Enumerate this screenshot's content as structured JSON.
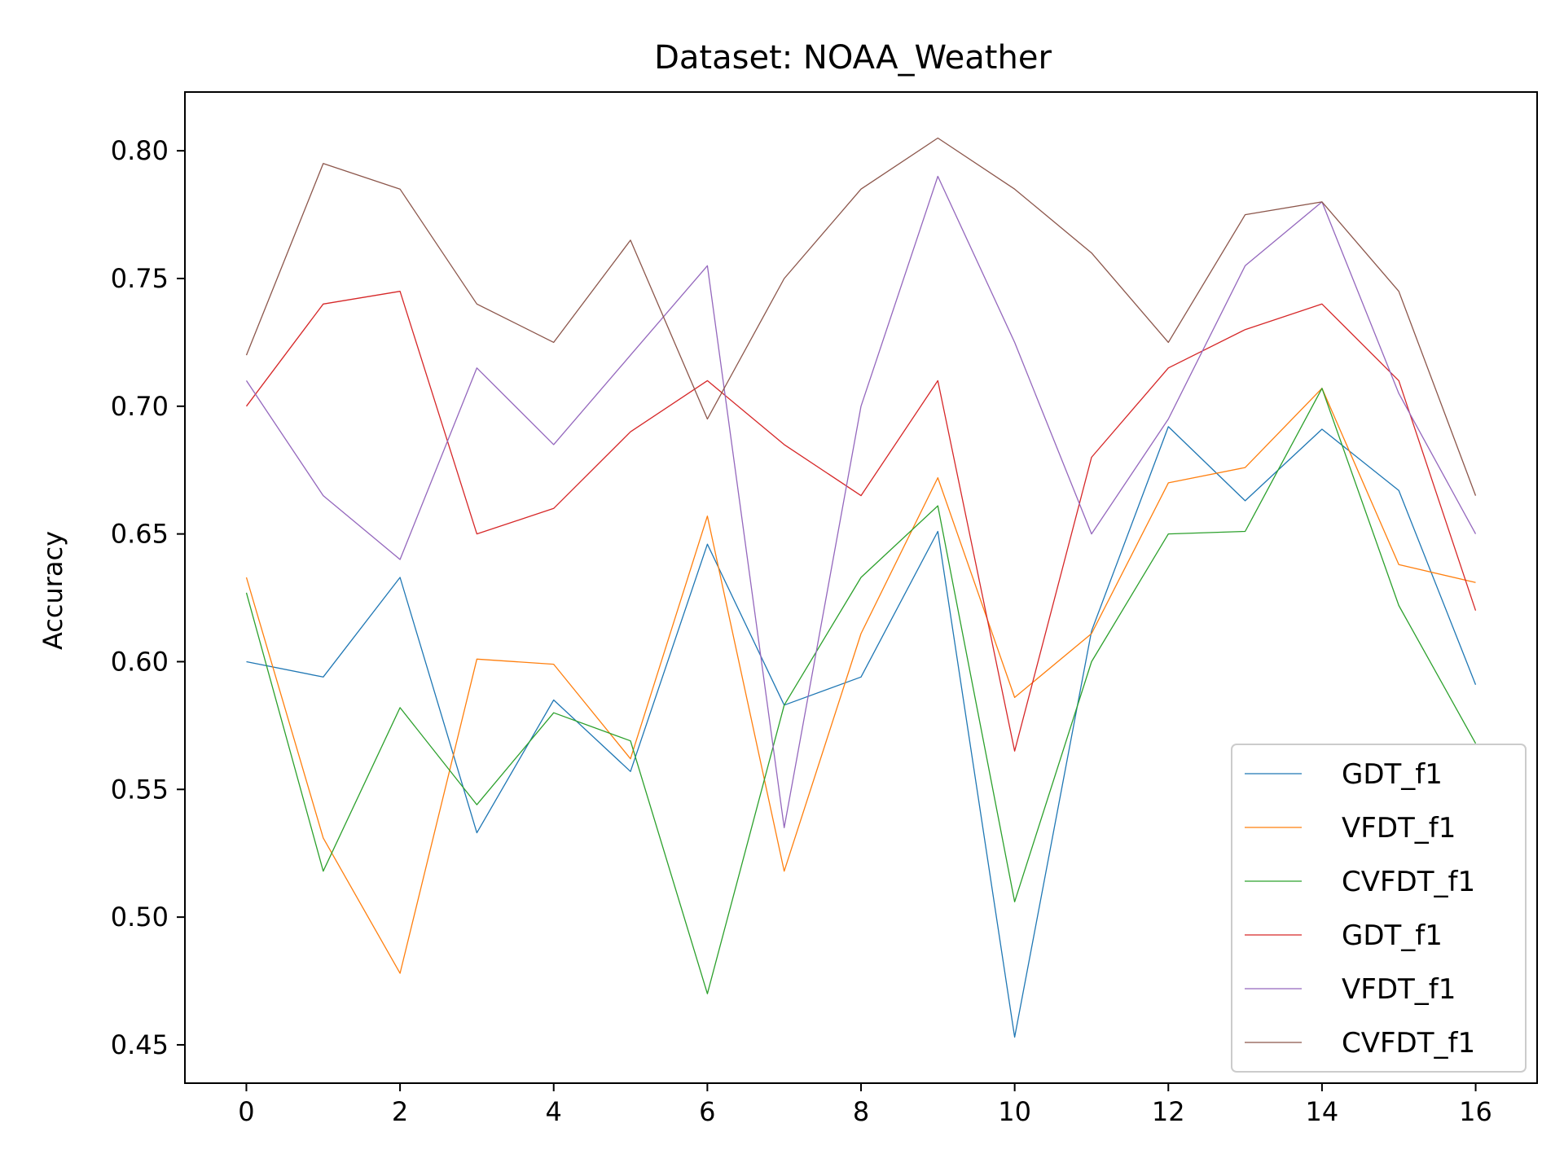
{
  "chart_data": {
    "type": "line",
    "title": "Dataset: NOAA_Weather",
    "xlabel": "",
    "ylabel": "Accuracy",
    "xlim": [
      -0.8,
      16.8
    ],
    "ylim": [
      0.435,
      0.823
    ],
    "xticks": [
      0,
      2,
      4,
      6,
      8,
      10,
      12,
      14,
      16
    ],
    "yticks": [
      "0.45",
      "0.50",
      "0.55",
      "0.60",
      "0.65",
      "0.70",
      "0.75",
      "0.80"
    ],
    "grid": false,
    "legend_position": "lower-right",
    "x": [
      0,
      1,
      2,
      3,
      4,
      5,
      6,
      7,
      8,
      9,
      10,
      11,
      12,
      13,
      14,
      15,
      16
    ],
    "series": [
      {
        "name": "GDT_f1",
        "color": "#1f77b4",
        "values": [
          0.6,
          0.594,
          0.633,
          0.533,
          0.585,
          0.557,
          0.646,
          0.583,
          0.594,
          0.651,
          0.453,
          0.612,
          0.692,
          0.663,
          0.691,
          0.667,
          0.591
        ]
      },
      {
        "name": "VFDT_f1",
        "color": "#ff7f0e",
        "values": [
          0.633,
          0.531,
          0.478,
          0.601,
          0.599,
          0.562,
          0.657,
          0.518,
          0.611,
          0.672,
          0.586,
          0.611,
          0.67,
          0.676,
          0.707,
          0.638,
          0.631
        ]
      },
      {
        "name": "CVFDT_f1",
        "color": "#2ca02c",
        "values": [
          0.627,
          0.518,
          0.582,
          0.544,
          0.58,
          0.569,
          0.47,
          0.583,
          0.633,
          0.661,
          0.506,
          0.6,
          0.65,
          0.651,
          0.707,
          0.622,
          0.568
        ]
      },
      {
        "name": "GDT_f1",
        "color": "#d62728",
        "values": [
          0.7,
          0.74,
          0.745,
          0.65,
          0.66,
          0.69,
          0.71,
          0.685,
          0.665,
          0.71,
          0.565,
          0.68,
          0.715,
          0.73,
          0.74,
          0.71,
          0.62
        ]
      },
      {
        "name": "VFDT_f1",
        "color": "#9467bd",
        "values": [
          0.71,
          0.665,
          0.64,
          0.715,
          0.685,
          0.72,
          0.755,
          0.535,
          0.7,
          0.79,
          0.725,
          0.65,
          0.695,
          0.755,
          0.78,
          0.705,
          0.65
        ]
      },
      {
        "name": "CVFDT_f1",
        "color": "#8c564b",
        "values": [
          0.72,
          0.795,
          0.785,
          0.74,
          0.725,
          0.765,
          0.695,
          0.75,
          0.785,
          0.805,
          0.785,
          0.76,
          0.725,
          0.775,
          0.78,
          0.745,
          0.665
        ]
      }
    ]
  }
}
